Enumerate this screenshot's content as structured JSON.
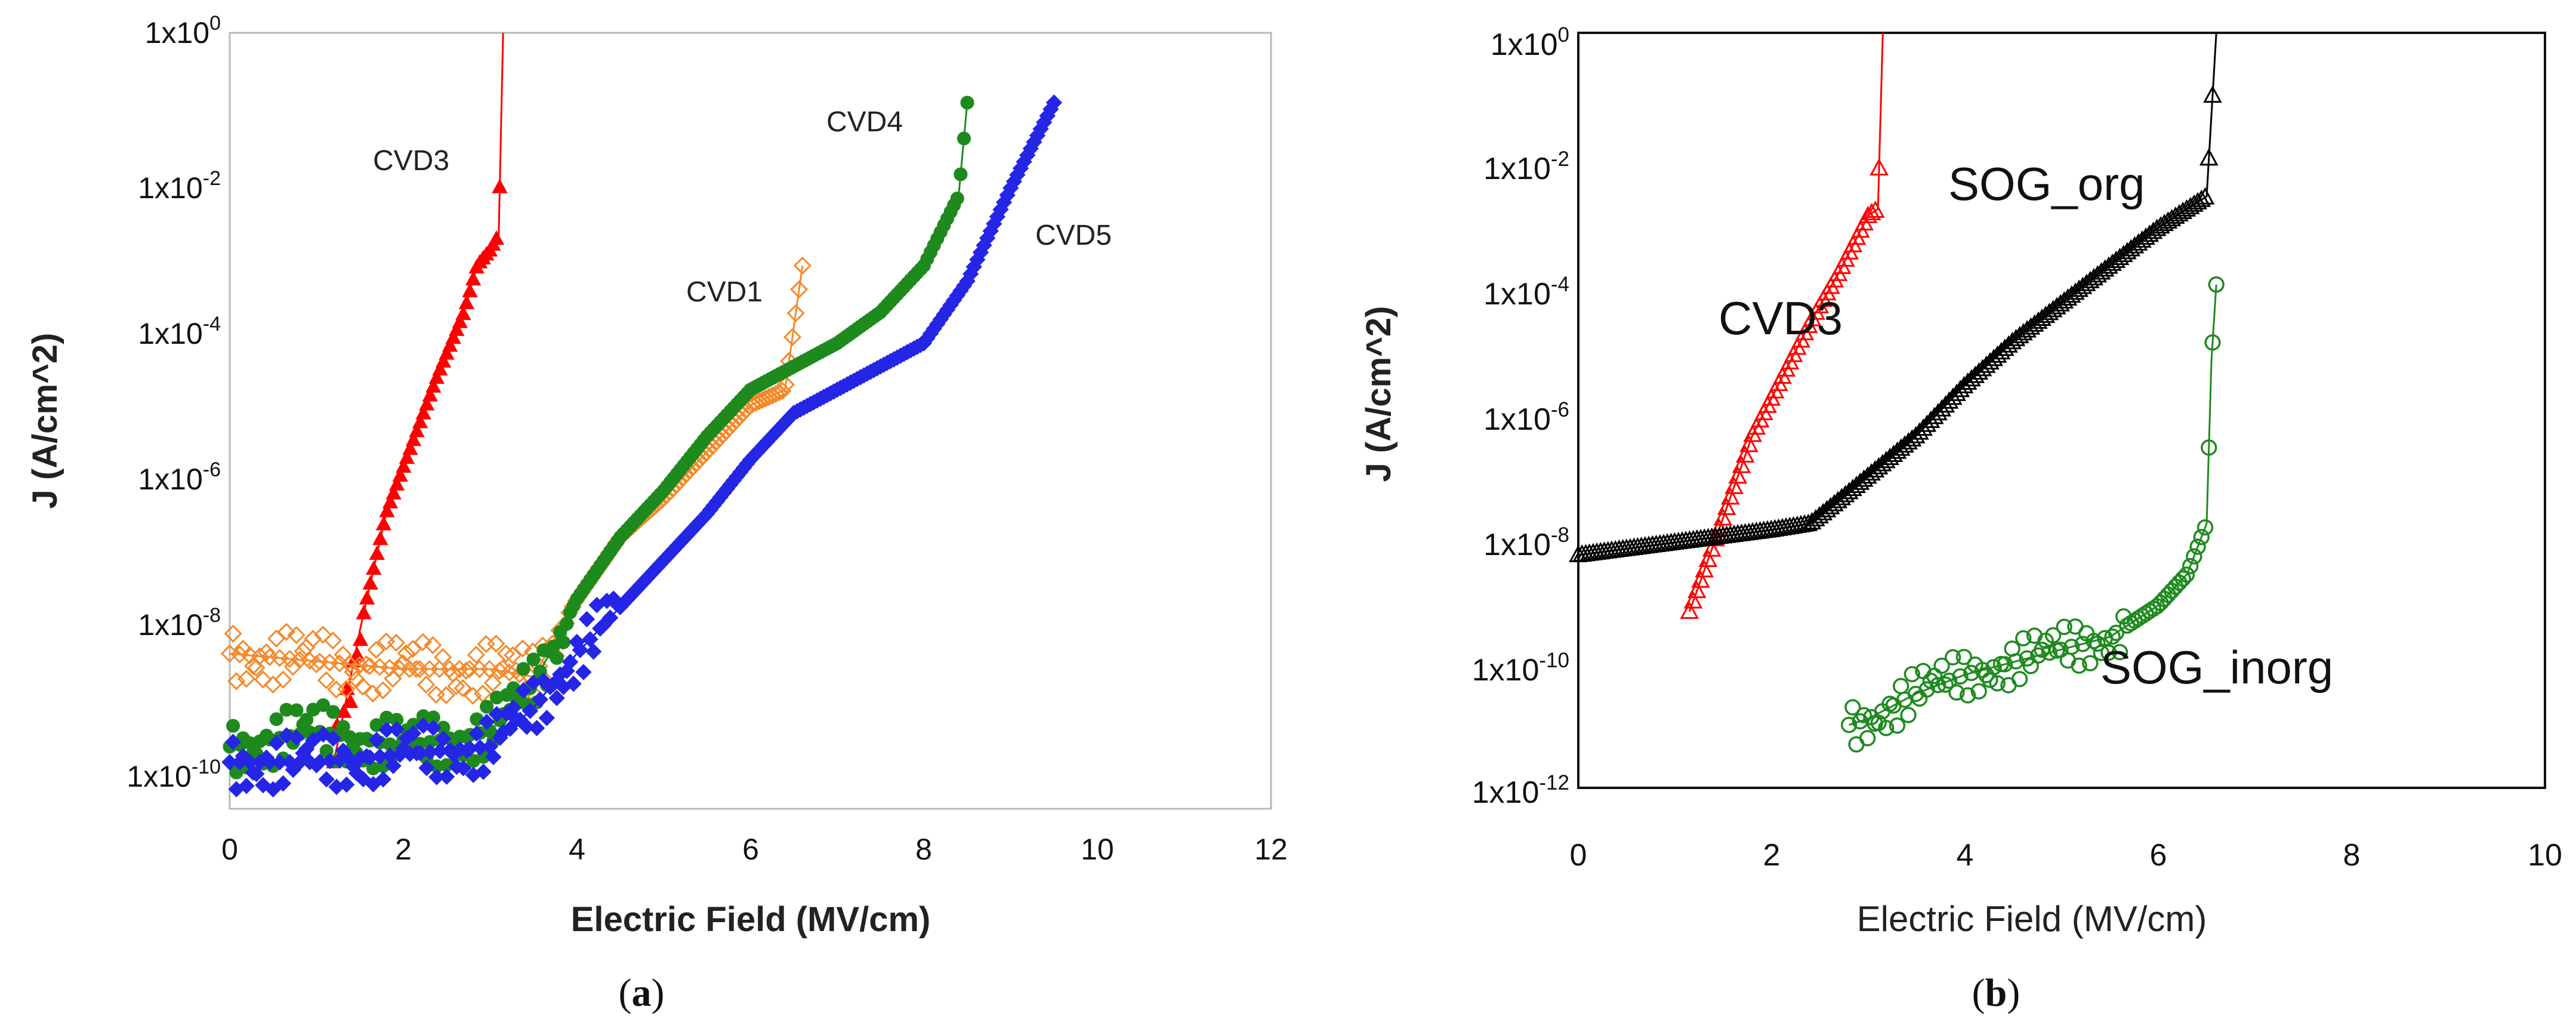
{
  "panels": [
    {
      "id": "a",
      "label": "a",
      "marker_color": "#ff0000",
      "series_colors": {
        "CVD1": "#f5892a",
        "CVD3": "#ff0000",
        "CVD4": "#1e8a1e",
        "CVD5": "#2525e6"
      },
      "chart_data": {
        "type": "scatter",
        "xlabel": "Electric Field (MV/cm)",
        "ylabel": "J (A/cm^2)",
        "xlim": [
          0,
          12
        ],
        "ylim_log10": [
          -10,
          0
        ],
        "x_ticks": [
          "0",
          "2",
          "4",
          "6",
          "8",
          "10",
          "12"
        ],
        "y_ticks": [
          {
            "base": "1x10",
            "exp": "0"
          },
          {
            "base": "1x10",
            "exp": "-2"
          },
          {
            "base": "1x10",
            "exp": "-4"
          },
          {
            "base": "1x10",
            "exp": "-6"
          },
          {
            "base": "1x10",
            "exp": "-8"
          },
          {
            "base": "1x10",
            "exp": "-10"
          }
        ],
        "annotations": [
          "CVD3",
          "CVD4",
          "CVD1",
          "CVD5"
        ],
        "series": [
          {
            "name": "CVD3",
            "marker": "triangle-filled",
            "x": [
              1.2,
              1.5,
              1.8,
              2.1,
              2.4,
              2.7,
              2.85,
              3.0,
              3.1,
              3.15
            ],
            "log10_y": [
              -9.4,
              -7.7,
              -6.2,
              -5.3,
              -4.4,
              -3.6,
              -3.0,
              -2.8,
              -2.6,
              0.0
            ]
          },
          {
            "name": "CVD1",
            "marker": "diamond-open",
            "x": [
              0.0,
              1.0,
              2.0,
              3.0,
              3.5,
              4.0,
              4.5,
              5.0,
              5.5,
              6.0,
              6.4,
              6.6
            ],
            "log10_y": [
              -8.0,
              -8.1,
              -8.2,
              -8.2,
              -8.3,
              -7.3,
              -6.5,
              -6.0,
              -5.4,
              -4.8,
              -4.6,
              -3.0
            ]
          },
          {
            "name": "CVD4",
            "marker": "circle-filled",
            "x": [
              0.0,
              1.0,
              2.0,
              3.0,
              3.5,
              4.0,
              4.5,
              5.0,
              5.5,
              6.0,
              6.5,
              7.0,
              7.5,
              8.0,
              8.4,
              8.5
            ],
            "log10_y": [
              -9.2,
              -9.0,
              -9.2,
              -9.0,
              -8.4,
              -7.3,
              -6.5,
              -5.9,
              -5.2,
              -4.6,
              -4.3,
              -4.0,
              -3.6,
              -3.0,
              -2.1,
              -0.9
            ]
          },
          {
            "name": "CVD5",
            "marker": "diamond-filled",
            "x": [
              0.0,
              1.0,
              2.0,
              3.0,
              3.5,
              4.0,
              4.5,
              5.0,
              5.5,
              6.0,
              6.5,
              7.0,
              7.5,
              8.0,
              8.5,
              9.0,
              9.5
            ],
            "log10_y": [
              -9.4,
              -9.4,
              -9.3,
              -9.2,
              -8.7,
              -8.0,
              -7.4,
              -6.8,
              -6.2,
              -5.5,
              -4.9,
              -4.6,
              -4.3,
              -4.0,
              -3.2,
              -2.0,
              -0.9
            ]
          }
        ]
      }
    },
    {
      "id": "b",
      "label": "b",
      "series_colors": {
        "CVD3": "#ff0000",
        "SOG_org": "#000000",
        "SOG_inorg": "#1e8a1e"
      },
      "chart_data": {
        "type": "scatter",
        "xlabel": "Electric Field (MV/cm)",
        "ylabel": "J (A/cm^2)",
        "xlim": [
          0,
          10
        ],
        "ylim_log10": [
          -12,
          0
        ],
        "x_ticks": [
          "0",
          "2",
          "4",
          "6",
          "8",
          "10"
        ],
        "y_ticks": [
          {
            "base": "1x10",
            "exp": "0"
          },
          {
            "base": "1x10",
            "exp": "-2"
          },
          {
            "base": "1x10",
            "exp": "-4"
          },
          {
            "base": "1x10",
            "exp": "-6"
          },
          {
            "base": "1x10",
            "exp": "-8"
          },
          {
            "base": "1x10",
            "exp": "-10"
          },
          {
            "base": "1x10",
            "exp": "-12"
          }
        ],
        "annotations": [
          "SOG_org",
          "CVD3",
          "SOG_inorg"
        ],
        "series": [
          {
            "name": "CVD3",
            "marker": "triangle-open",
            "x": [
              1.15,
              1.5,
              1.8,
              2.1,
              2.4,
              2.7,
              2.9,
              3.0,
              3.1,
              3.15
            ],
            "log10_y": [
              -9.2,
              -7.7,
              -6.4,
              -5.5,
              -4.6,
              -3.8,
              -3.2,
              -2.9,
              -2.8,
              0.0
            ]
          },
          {
            "name": "SOG_org",
            "marker": "triangle-open",
            "x": [
              0.0,
              0.5,
              1.0,
              1.5,
              2.0,
              2.4,
              2.8,
              3.5,
              4.0,
              4.5,
              5.0,
              5.5,
              6.0,
              6.5,
              6.6
            ],
            "log10_y": [
              -8.3,
              -8.2,
              -8.1,
              -8.0,
              -7.9,
              -7.8,
              -7.3,
              -6.4,
              -5.6,
              -4.9,
              -4.3,
              -3.7,
              -3.1,
              -2.6,
              0.0
            ]
          },
          {
            "name": "SOG_inorg",
            "marker": "circle-open",
            "x": [
              2.8,
              3.0,
              3.5,
              4.0,
              4.5,
              5.0,
              5.5,
              6.0,
              6.3,
              6.5,
              6.55,
              6.6
            ],
            "log10_y": [
              -11.0,
              -10.9,
              -10.5,
              -10.2,
              -10.0,
              -9.8,
              -9.6,
              -9.1,
              -8.6,
              -7.8,
              -5.2,
              -4.0
            ]
          }
        ]
      }
    }
  ]
}
